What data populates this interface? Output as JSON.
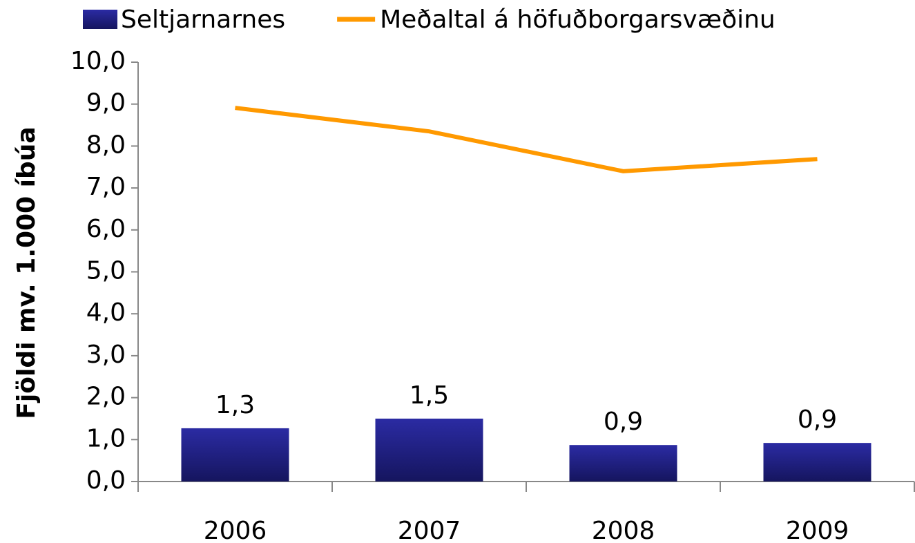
{
  "chart_data": {
    "type": "bar",
    "y_axis_label": "Fjöldi mv. 1.000 íbúa",
    "categories": [
      "2006",
      "2007",
      "2008",
      "2009"
    ],
    "series": [
      {
        "name": "Seltjarnarnes",
        "type": "bar",
        "color": "#22228a",
        "values": [
          1.27,
          1.5,
          0.87,
          0.92
        ],
        "value_labels": [
          "1,3",
          "1,5",
          "0,9",
          "0,9"
        ]
      },
      {
        "name": "Meðaltal á höfuðborgarsvæðinu",
        "type": "line",
        "color": "#ff9900",
        "values": [
          8.91,
          8.35,
          7.4,
          7.69
        ]
      }
    ],
    "ylim": [
      0,
      10
    ],
    "yticks": [
      {
        "value": 0,
        "label": "0,0"
      },
      {
        "value": 1,
        "label": "1,0"
      },
      {
        "value": 2,
        "label": "2,0"
      },
      {
        "value": 3,
        "label": "3,0"
      },
      {
        "value": 4,
        "label": "4,0"
      },
      {
        "value": 5,
        "label": "5,0"
      },
      {
        "value": 6,
        "label": "6,0"
      },
      {
        "value": 7,
        "label": "7,0"
      },
      {
        "value": 8,
        "label": "8,0"
      },
      {
        "value": 9,
        "label": "9,0"
      },
      {
        "value": 10,
        "label": "10,0"
      }
    ],
    "grid": false,
    "legend": "top"
  }
}
